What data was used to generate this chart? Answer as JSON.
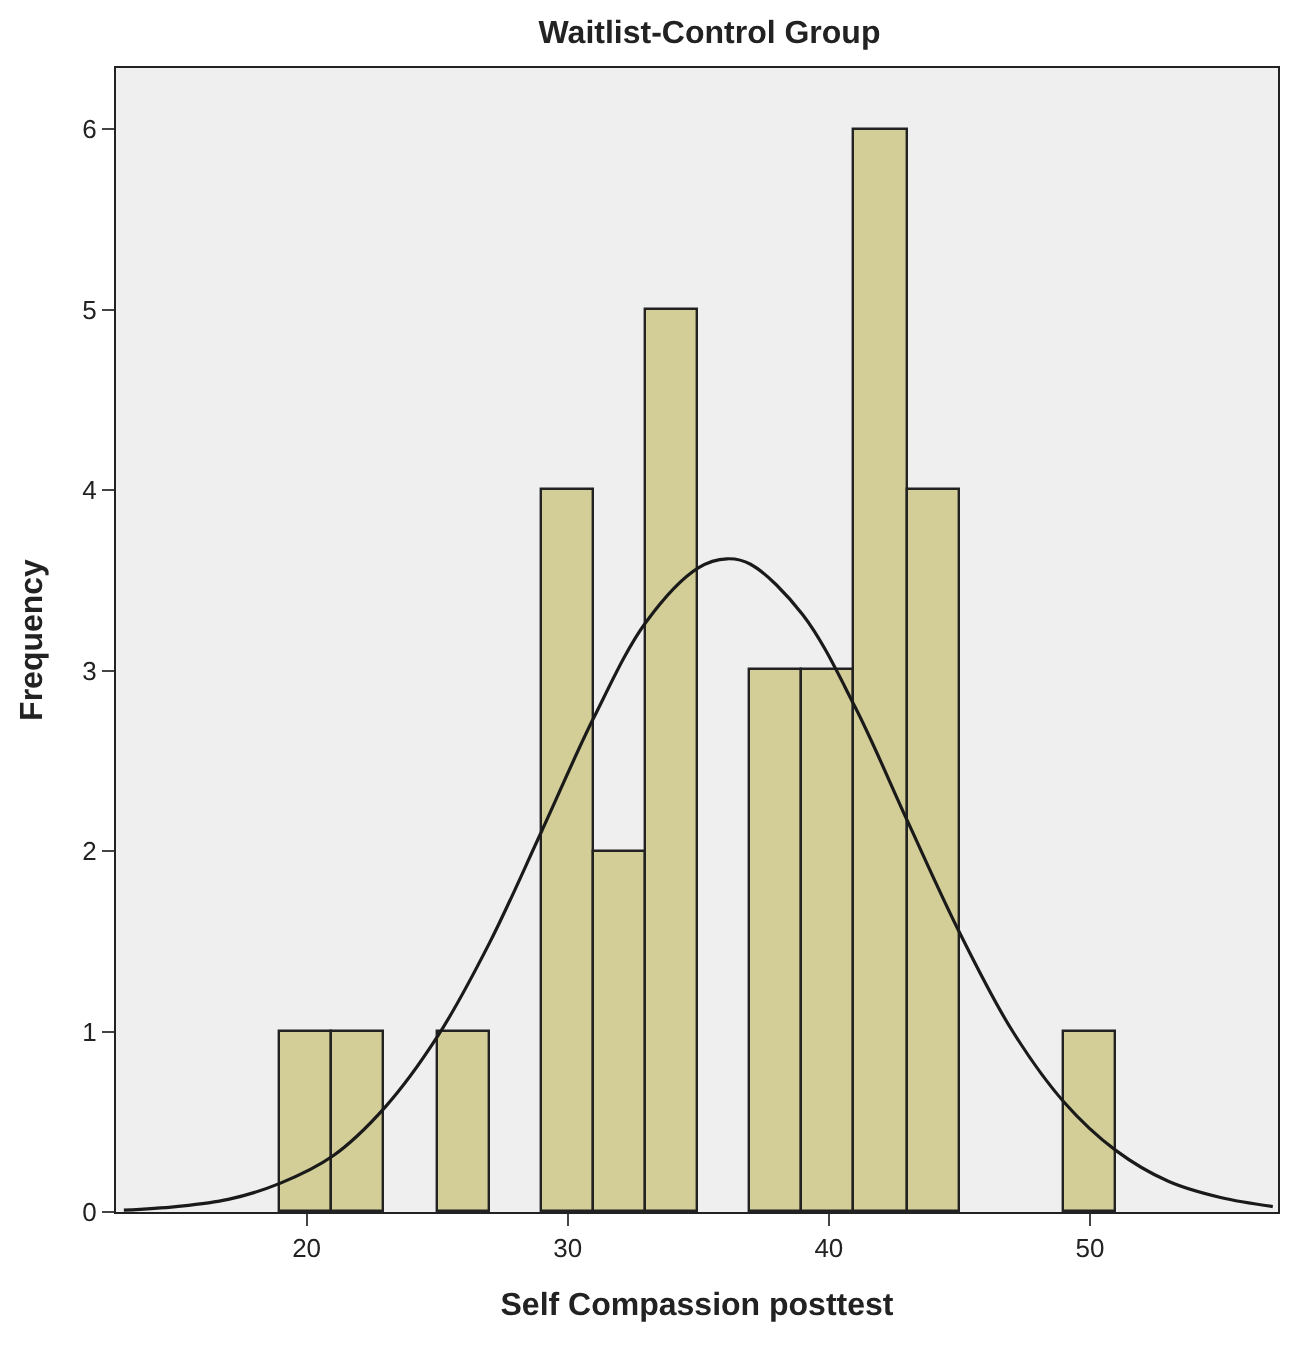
{
  "chart_data": {
    "type": "histogram",
    "title": "Waitlist-Control Group",
    "xlabel": "Self Compassion posttest",
    "ylabel": "Frequency",
    "bins": [
      19,
      21,
      23,
      25,
      27,
      29,
      31,
      33,
      35,
      37,
      39,
      41,
      43,
      45,
      47,
      49,
      51
    ],
    "values": [
      1,
      1,
      0,
      1,
      0,
      4,
      2,
      5,
      0,
      3,
      3,
      6,
      4,
      0,
      0,
      1
    ],
    "color": "#d3ce97",
    "series": [
      {
        "type": "line",
        "color": "#1a1a1a",
        "x": [
          13,
          15,
          17,
          19,
          21,
          23,
          25,
          27,
          29,
          31,
          33,
          35,
          36.1,
          37,
          39,
          41,
          43,
          45,
          47,
          49,
          51,
          53,
          55,
          57
        ],
        "values": [
          0.01,
          0.03,
          0.07,
          0.16,
          0.31,
          0.58,
          0.97,
          1.49,
          2.11,
          2.74,
          3.27,
          3.57,
          3.62,
          3.59,
          3.31,
          2.8,
          2.17,
          1.55,
          1.01,
          0.61,
          0.34,
          0.17,
          0.08,
          0.03
        ]
      }
    ],
    "xlim": [
      12.7,
      57.2
    ],
    "xticks": [
      20,
      30,
      40,
      50
    ],
    "ylim": [
      0,
      6.34
    ],
    "yticks": [
      0,
      1,
      2,
      3,
      4,
      5,
      6
    ],
    "grid": false
  }
}
